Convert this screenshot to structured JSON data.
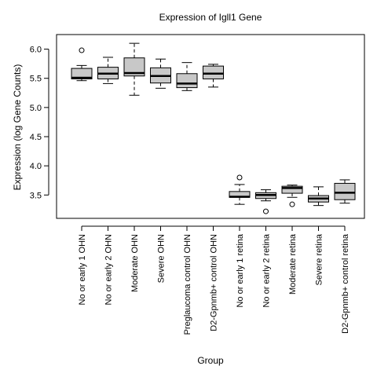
{
  "chart_data": {
    "type": "boxplot",
    "title": "Expression of  Igll1 Gene",
    "xlabel": "Group",
    "ylabel": "Expression (log Gene Counts)",
    "ylim": [
      3.1,
      6.25
    ],
    "yticks": [
      "3.5",
      "4.0",
      "4.5",
      "5.0",
      "5.5",
      "6.0"
    ],
    "box_fill": "#c8c8c8",
    "groups": [
      {
        "label": "No or early 1 OHN",
        "whisker_low": 5.46,
        "q1": 5.49,
        "median": 5.51,
        "q3": 5.67,
        "whisker_high": 5.72,
        "outliers": [
          5.98
        ]
      },
      {
        "label": "No or early 2 OHN",
        "whisker_low": 5.41,
        "q1": 5.49,
        "median": 5.58,
        "q3": 5.69,
        "whisker_high": 5.86,
        "outliers": []
      },
      {
        "label": "Moderate OHN",
        "whisker_low": 5.21,
        "q1": 5.54,
        "median": 5.59,
        "q3": 5.85,
        "whisker_high": 6.1,
        "outliers": []
      },
      {
        "label": "Severe OHN",
        "whisker_low": 5.33,
        "q1": 5.42,
        "median": 5.54,
        "q3": 5.68,
        "whisker_high": 5.83,
        "outliers": []
      },
      {
        "label": "Preglaucoma control OHN",
        "whisker_low": 5.29,
        "q1": 5.34,
        "median": 5.41,
        "q3": 5.58,
        "whisker_high": 5.77,
        "outliers": []
      },
      {
        "label": "D2-Gpnmb+ control OHN",
        "whisker_low": 5.35,
        "q1": 5.49,
        "median": 5.58,
        "q3": 5.71,
        "whisker_high": 5.74,
        "outliers": []
      },
      {
        "label": "No or early 1 retina",
        "whisker_low": 3.34,
        "q1": 3.46,
        "median": 3.47,
        "q3": 3.56,
        "whisker_high": 3.68,
        "outliers": [
          3.8
        ]
      },
      {
        "label": "No or early 2 retina",
        "whisker_low": 3.4,
        "q1": 3.44,
        "median": 3.5,
        "q3": 3.54,
        "whisker_high": 3.59,
        "outliers": [
          3.22
        ]
      },
      {
        "label": "Moderate retina",
        "whisker_low": 3.46,
        "q1": 3.53,
        "median": 3.62,
        "q3": 3.65,
        "whisker_high": 3.67,
        "outliers": [
          3.34
        ]
      },
      {
        "label": "Severe retina",
        "whisker_low": 3.32,
        "q1": 3.38,
        "median": 3.44,
        "q3": 3.49,
        "whisker_high": 3.64,
        "outliers": []
      },
      {
        "label": "D2-Gpnmb+ control retina",
        "whisker_low": 3.36,
        "q1": 3.42,
        "median": 3.54,
        "q3": 3.7,
        "whisker_high": 3.76,
        "outliers": []
      }
    ]
  }
}
